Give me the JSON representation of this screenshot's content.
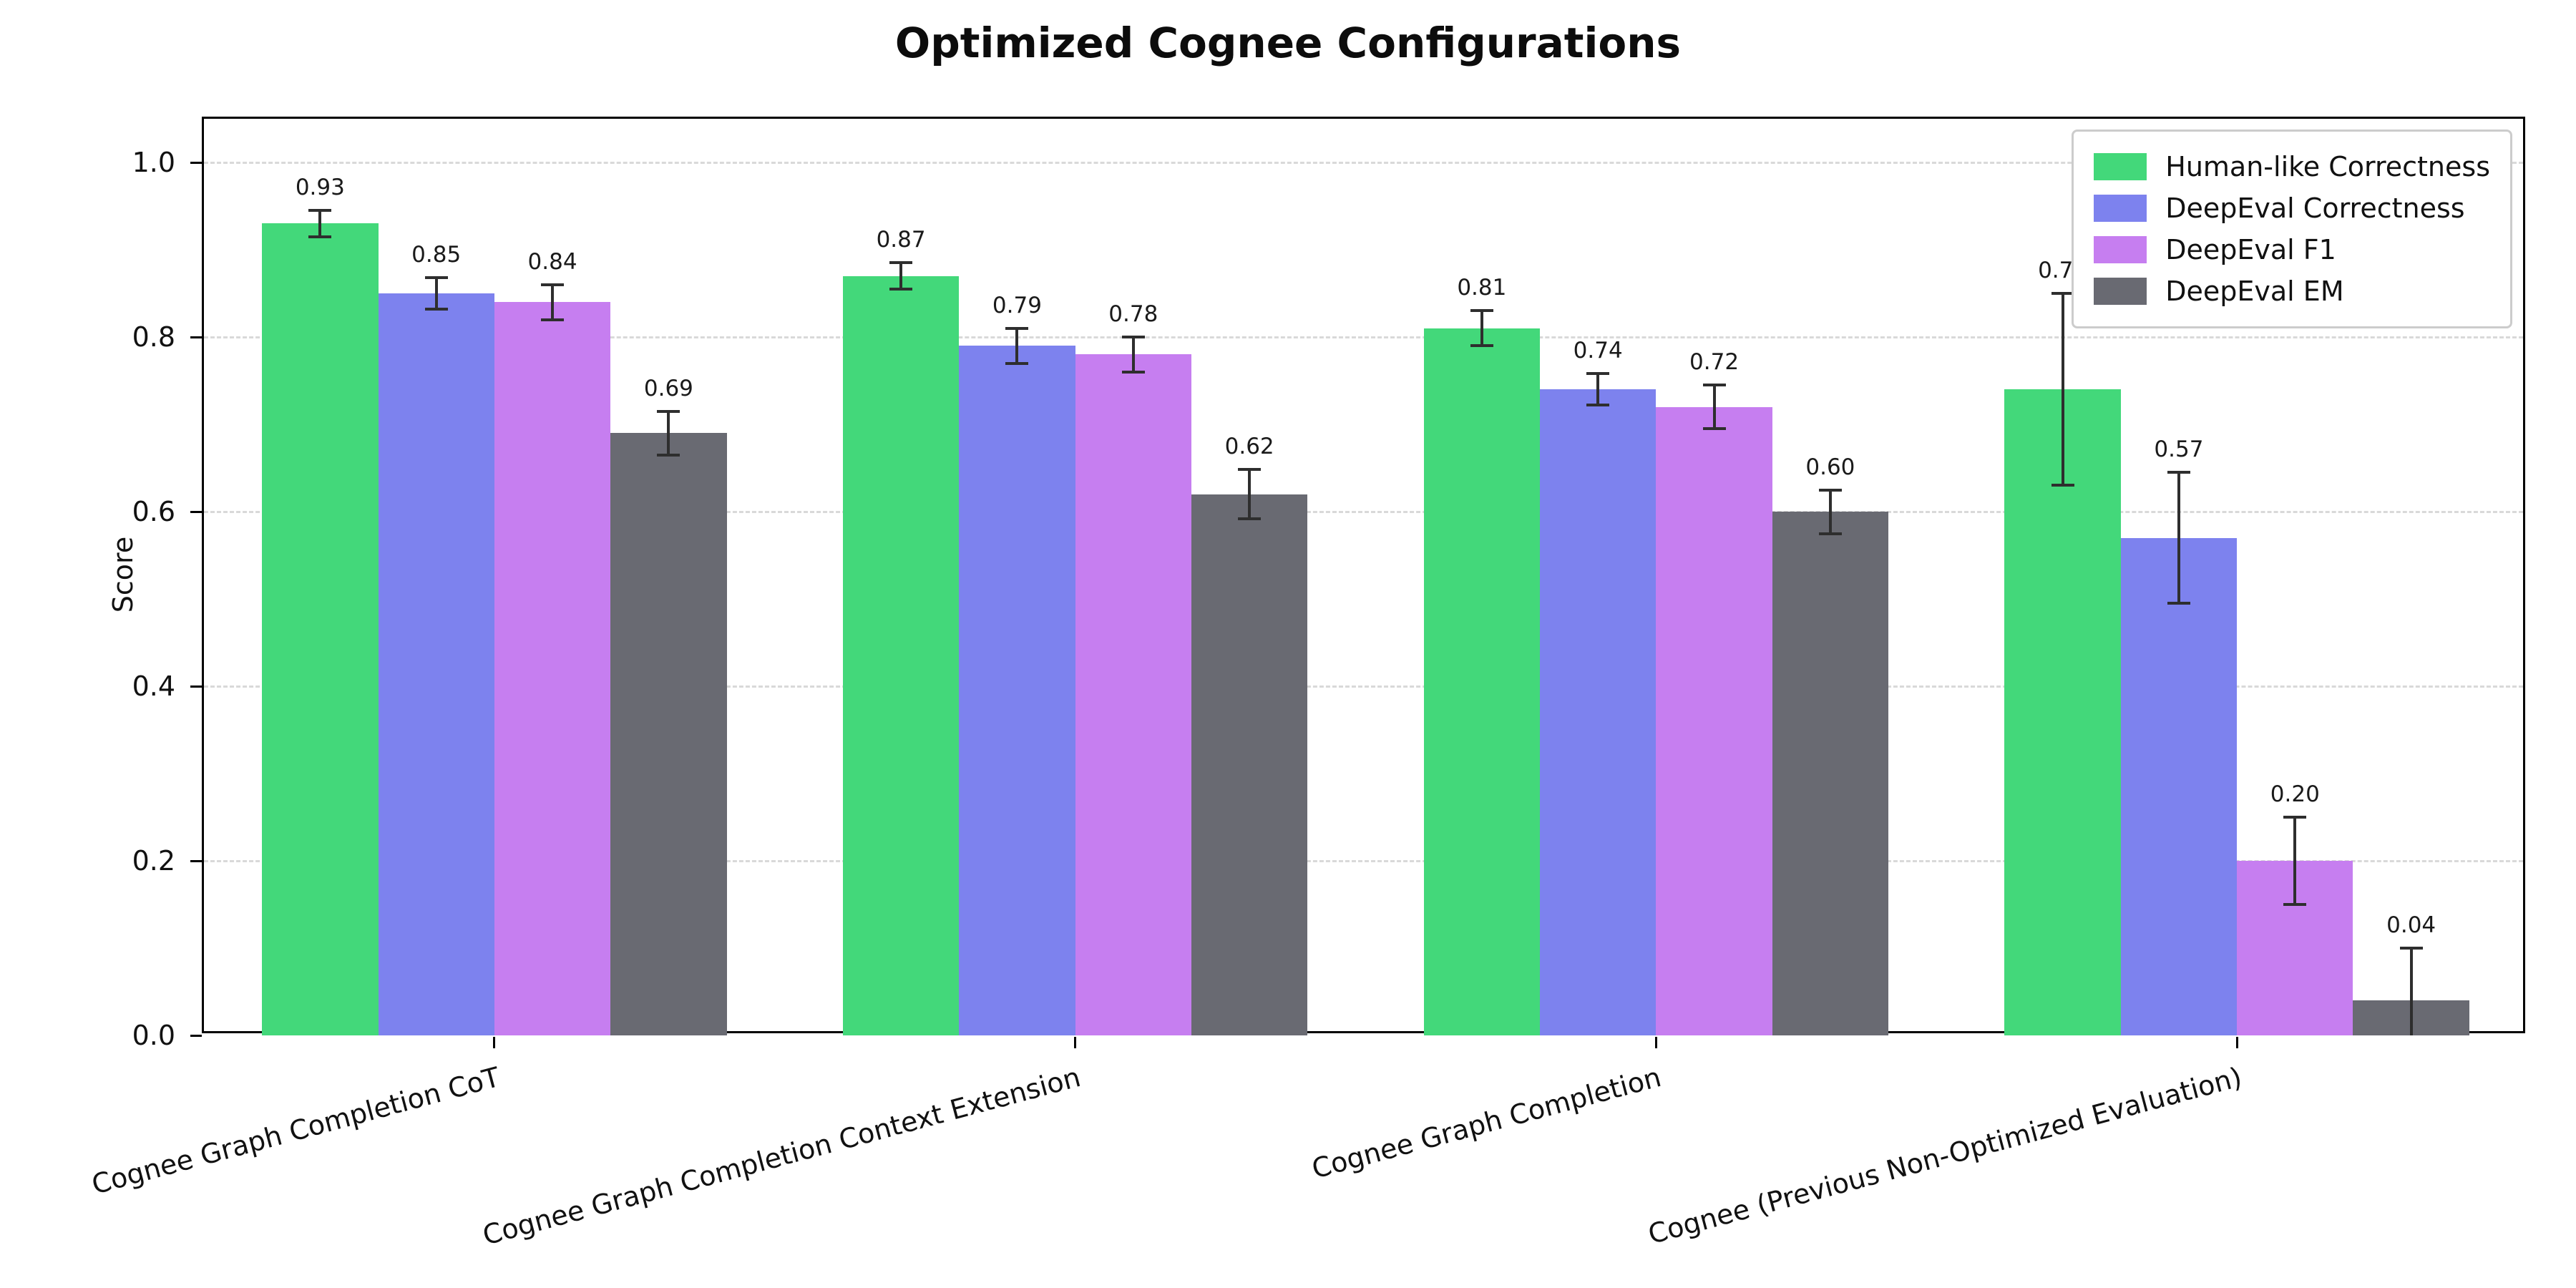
{
  "title": "Optimized Cognee Configurations",
  "chart_data": {
    "type": "bar",
    "title": "Optimized Cognee Configurations",
    "xlabel": "",
    "ylabel": "Score",
    "ylim": [
      0,
      1.05
    ],
    "yticks": [
      0.0,
      0.2,
      0.4,
      0.6,
      0.8,
      1.0
    ],
    "grid": "dashed-horizontal",
    "legend_position": "upper-right",
    "background": "#ffffff",
    "categories": [
      "Cognee Graph Completion CoT",
      "Cognee Graph Completion Context Extension",
      "Cognee Graph Completion",
      "Cognee (Previous Non-Optimized Evaluation)"
    ],
    "series": [
      {
        "name": "Human-like Correctness",
        "color": "#43d87a",
        "values": [
          0.93,
          0.87,
          0.81,
          0.74
        ],
        "errors": [
          0.015,
          0.015,
          0.02,
          0.11
        ]
      },
      {
        "name": "DeepEval Correctness",
        "color": "#7d82ee",
        "values": [
          0.85,
          0.79,
          0.74,
          0.57
        ],
        "errors": [
          0.018,
          0.02,
          0.018,
          0.075
        ]
      },
      {
        "name": "DeepEval F1",
        "color": "#c67ef0",
        "values": [
          0.84,
          0.78,
          0.72,
          0.2
        ],
        "errors": [
          0.02,
          0.02,
          0.025,
          0.05
        ]
      },
      {
        "name": "DeepEval EM",
        "color": "#696a72",
        "values": [
          0.69,
          0.62,
          0.6,
          0.04
        ],
        "errors": [
          0.025,
          0.028,
          0.025,
          0.06
        ]
      }
    ]
  }
}
